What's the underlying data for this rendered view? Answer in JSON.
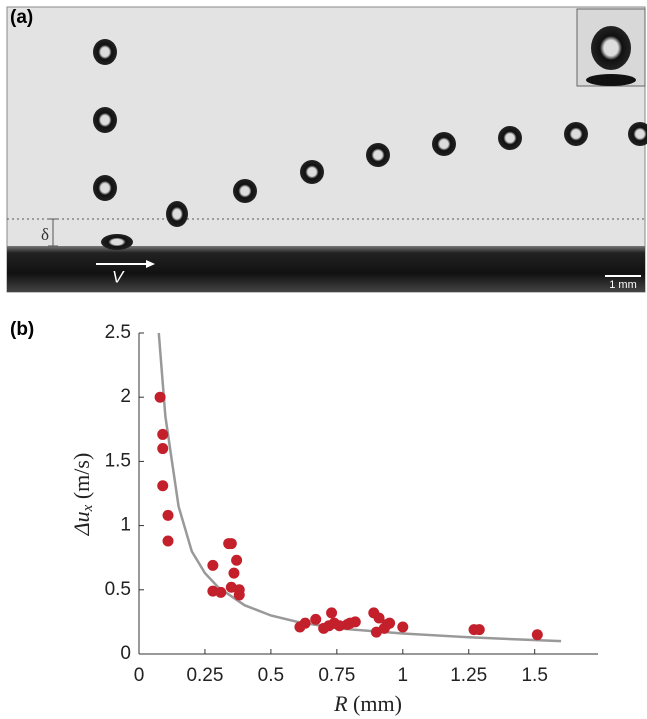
{
  "panel_a": {
    "label": "(a)",
    "gap_label": "δ",
    "velocity_label": "V",
    "scale_label": "1 mm"
  },
  "chart_data": {
    "type": "scatter",
    "panel_label": "(b)",
    "x_label": [
      "R",
      " (mm)"
    ],
    "y_label": [
      "Δu",
      "x",
      " (m/s)"
    ],
    "xlim": [
      0,
      1.74
    ],
    "ylim": [
      0,
      2.5
    ],
    "xticks": [
      0,
      0.25,
      0.5,
      0.75,
      1,
      1.25,
      1.5
    ],
    "yticks": [
      0,
      0.5,
      1,
      1.5,
      2,
      2.5
    ],
    "series": [
      {
        "color": "#c4202b",
        "x": [
          0.08,
          0.09,
          0.09,
          0.09,
          0.11,
          0.11,
          0.28,
          0.28,
          0.31,
          0.34,
          0.35,
          0.35,
          0.37,
          0.36,
          0.38,
          0.38,
          0.61,
          0.63,
          0.67,
          0.7,
          0.72,
          0.73,
          0.74,
          0.76,
          0.79,
          0.8,
          0.82,
          0.89,
          0.9,
          0.91,
          0.93,
          0.94,
          0.95,
          1.0,
          1.27,
          1.29,
          1.51
        ],
        "values": [
          2.0,
          1.71,
          1.6,
          1.31,
          1.08,
          0.88,
          0.69,
          0.49,
          0.48,
          0.86,
          0.86,
          0.52,
          0.73,
          0.63,
          0.5,
          0.46,
          0.21,
          0.24,
          0.27,
          0.2,
          0.22,
          0.32,
          0.24,
          0.22,
          0.23,
          0.24,
          0.25,
          0.32,
          0.17,
          0.28,
          0.2,
          0.23,
          0.24,
          0.21,
          0.19,
          0.19,
          0.15
        ]
      },
      {
        "color": "#999999",
        "line": true,
        "x": [
          0.075,
          0.1,
          0.15,
          0.2,
          0.25,
          0.3,
          0.4,
          0.5,
          0.6,
          0.75,
          1.0,
          1.25,
          1.6
        ],
        "values": [
          2.5,
          1.85,
          1.15,
          0.8,
          0.63,
          0.52,
          0.38,
          0.3,
          0.25,
          0.2,
          0.16,
          0.13,
          0.1
        ]
      }
    ]
  }
}
